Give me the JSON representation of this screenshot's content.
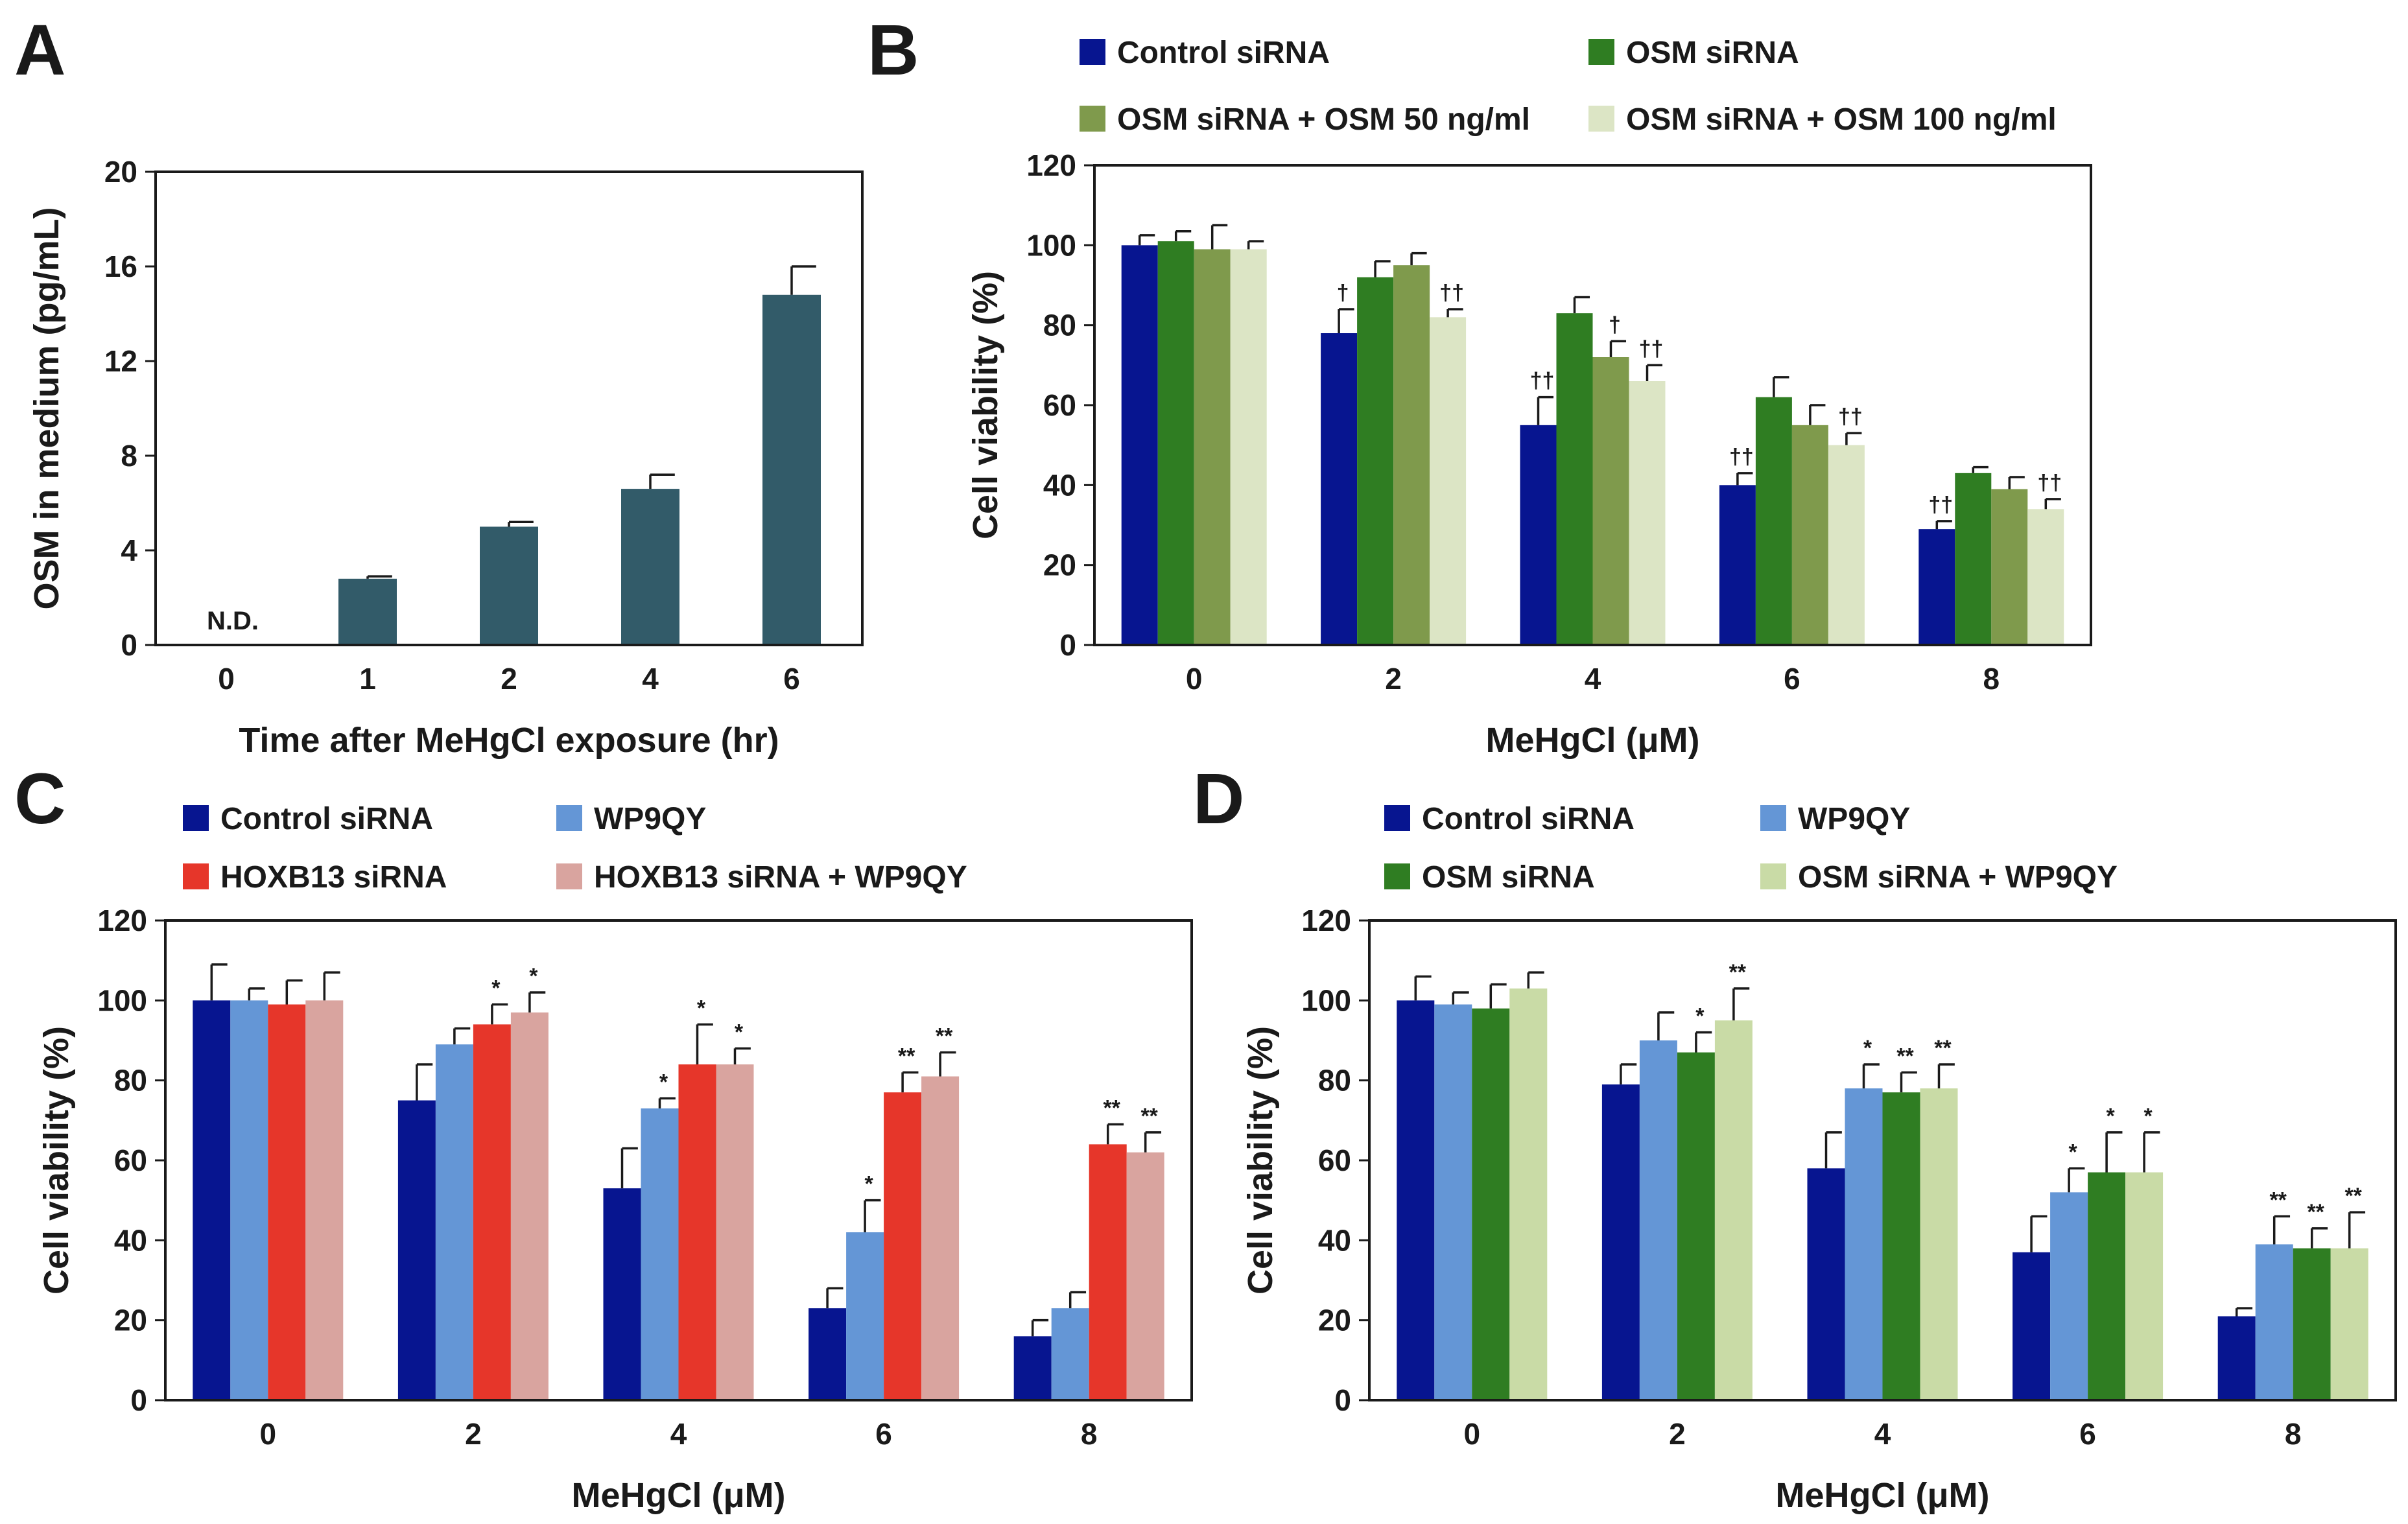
{
  "colors": {
    "navy": "#071590",
    "dark_green": "#2f7d22",
    "olive": "#7f9a4c",
    "pale_green": "#dce5c5",
    "steel": "#325b69",
    "sky_blue": "#6496d6",
    "red": "#e6362a",
    "pink": "#d9a49f",
    "light_green": "#c9dba6"
  },
  "chart_data": [
    {
      "panel": "A",
      "type": "bar",
      "title": "",
      "xlabel": "Time after MeHgCl exposure (hr)",
      "ylabel": "OSM in medium (pg/mL)",
      "ylim": [
        0,
        20
      ],
      "yticks": [
        "0",
        "4",
        "8",
        "12",
        "16",
        "20"
      ],
      "categories": [
        "0",
        "1",
        "2",
        "4",
        "6"
      ],
      "series": [
        {
          "name": "OSM",
          "color": "#325b69",
          "values": [
            null,
            2.8,
            5.0,
            6.6,
            14.8
          ],
          "errors": [
            null,
            0.1,
            0.2,
            0.6,
            1.2
          ]
        }
      ],
      "annotations": [
        {
          "category_index": 0,
          "text": "N.D."
        }
      ]
    },
    {
      "panel": "B",
      "type": "bar",
      "title": "",
      "xlabel": "MeHgCl (μM)",
      "ylabel": "Cell viability (%)",
      "ylim": [
        0,
        120
      ],
      "yticks": [
        "0",
        "20",
        "40",
        "60",
        "80",
        "100",
        "120"
      ],
      "categories": [
        "0",
        "2",
        "4",
        "6",
        "8"
      ],
      "legend": [
        {
          "name": "Control siRNA",
          "color": "#071590"
        },
        {
          "name": "OSM siRNA",
          "color": "#2f7d22"
        },
        {
          "name": "OSM siRNA + OSM 50 ng/ml",
          "color": "#7f9a4c"
        },
        {
          "name": "OSM siRNA + OSM 100 ng/ml",
          "color": "#dce5c5"
        }
      ],
      "series": [
        {
          "name": "Control siRNA",
          "color": "#071590",
          "values": [
            100,
            78,
            55,
            40,
            29
          ],
          "errors": [
            2.5,
            6,
            7,
            3,
            2
          ],
          "marks": [
            "",
            "†",
            "††",
            "††",
            "††"
          ]
        },
        {
          "name": "OSM siRNA",
          "color": "#2f7d22",
          "values": [
            101,
            92,
            83,
            62,
            43
          ],
          "errors": [
            2.5,
            4,
            4,
            5,
            1.5
          ],
          "marks": [
            "",
            "",
            "",
            "",
            ""
          ]
        },
        {
          "name": "OSM siRNA + OSM 50 ng/ml",
          "color": "#7f9a4c",
          "values": [
            99,
            95,
            72,
            55,
            39
          ],
          "errors": [
            6,
            3,
            4,
            5,
            3
          ],
          "marks": [
            "",
            "",
            "†",
            "",
            ""
          ]
        },
        {
          "name": "OSM siRNA + OSM 100 ng/ml",
          "color": "#dce5c5",
          "values": [
            99,
            82,
            66,
            50,
            34
          ],
          "errors": [
            2,
            2,
            4,
            3,
            2.5
          ],
          "marks": [
            "",
            "††",
            "††",
            "††",
            "††"
          ]
        }
      ]
    },
    {
      "panel": "C",
      "type": "bar",
      "title": "",
      "xlabel": "MeHgCl (μM)",
      "ylabel": "Cell viability (%)",
      "ylim": [
        0,
        120
      ],
      "yticks": [
        "0",
        "20",
        "40",
        "60",
        "80",
        "100",
        "120"
      ],
      "categories": [
        "0",
        "2",
        "4",
        "6",
        "8"
      ],
      "legend": [
        {
          "name": "Control siRNA",
          "color": "#071590"
        },
        {
          "name": "WP9QY",
          "color": "#6496d6"
        },
        {
          "name": "HOXB13 siRNA",
          "color": "#e6362a"
        },
        {
          "name": "HOXB13 siRNA + WP9QY",
          "color": "#d9a49f"
        }
      ],
      "series": [
        {
          "name": "Control siRNA",
          "color": "#071590",
          "values": [
            100,
            75,
            53,
            23,
            16
          ],
          "errors": [
            9,
            9,
            10,
            5,
            4
          ],
          "marks": [
            "",
            "",
            "",
            "",
            ""
          ]
        },
        {
          "name": "WP9QY",
          "color": "#6496d6",
          "values": [
            100,
            89,
            73,
            42,
            23
          ],
          "errors": [
            3,
            4,
            2.5,
            8,
            4
          ],
          "marks": [
            "",
            "",
            "*",
            "*",
            ""
          ]
        },
        {
          "name": "HOXB13 siRNA",
          "color": "#e6362a",
          "values": [
            99,
            94,
            84,
            77,
            64
          ],
          "errors": [
            6,
            5,
            10,
            5,
            5
          ],
          "marks": [
            "",
            "*",
            "*",
            "**",
            "**"
          ]
        },
        {
          "name": "HOXB13 siRNA + WP9QY",
          "color": "#d9a49f",
          "values": [
            100,
            97,
            84,
            81,
            62
          ],
          "errors": [
            7,
            5,
            4,
            6,
            5
          ],
          "marks": [
            "",
            "*",
            "*",
            "**",
            "**"
          ]
        }
      ]
    },
    {
      "panel": "D",
      "type": "bar",
      "title": "",
      "xlabel": "MeHgCl (μM)",
      "ylabel": "Cell viability (%)",
      "ylim": [
        0,
        120
      ],
      "yticks": [
        "0",
        "20",
        "40",
        "60",
        "80",
        "100",
        "120"
      ],
      "categories": [
        "0",
        "2",
        "4",
        "6",
        "8"
      ],
      "legend": [
        {
          "name": "Control siRNA",
          "color": "#071590"
        },
        {
          "name": "WP9QY",
          "color": "#6496d6"
        },
        {
          "name": "OSM siRNA",
          "color": "#2f7d22"
        },
        {
          "name": "OSM siRNA + WP9QY",
          "color": "#c9dba6"
        }
      ],
      "series": [
        {
          "name": "Control siRNA",
          "color": "#071590",
          "values": [
            100,
            79,
            58,
            37,
            21
          ],
          "errors": [
            6,
            5,
            9,
            9,
            2
          ],
          "marks": [
            "",
            "",
            "",
            "",
            ""
          ]
        },
        {
          "name": "WP9QY",
          "color": "#6496d6",
          "values": [
            99,
            90,
            78,
            52,
            39
          ],
          "errors": [
            3,
            7,
            6,
            6,
            7
          ],
          "marks": [
            "",
            "",
            "*",
            "*",
            "**"
          ]
        },
        {
          "name": "OSM siRNA",
          "color": "#2f7d22",
          "values": [
            98,
            87,
            77,
            57,
            38
          ],
          "errors": [
            6,
            5,
            5,
            10,
            5
          ],
          "marks": [
            "",
            "*",
            "**",
            "*",
            "**"
          ]
        },
        {
          "name": "OSM siRNA + WP9QY",
          "color": "#c9dba6",
          "values": [
            103,
            95,
            78,
            57,
            38
          ],
          "errors": [
            4,
            8,
            6,
            10,
            9
          ],
          "marks": [
            "",
            "**",
            "**",
            "*",
            "**"
          ]
        }
      ]
    }
  ]
}
